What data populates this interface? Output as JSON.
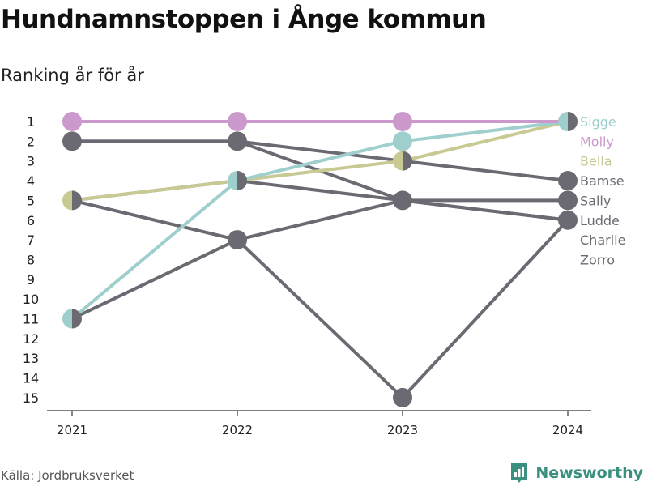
{
  "title": "Hundnamnstoppen i Ånge kommun",
  "subtitle": "Ranking år för år",
  "source": "Källa: Jordbruksverket",
  "brand": "Newsworthy",
  "colors": {
    "Sigge": "#9ecfcc",
    "Molly": "#cc99cc",
    "Bella": "#c9c994",
    "gray": "#6b6a72",
    "axis": "#333333",
    "brand": "#3a8f7f"
  },
  "chart_data": {
    "type": "line",
    "x": [
      "2021",
      "2022",
      "2023",
      "2024"
    ],
    "ylim": [
      1,
      15
    ],
    "y_inverted": true,
    "y_ticks": [
      1,
      2,
      3,
      4,
      5,
      6,
      7,
      8,
      9,
      10,
      11,
      12,
      13,
      14,
      15
    ],
    "series": [
      {
        "name": "Sigge",
        "values": [
          11,
          4,
          2,
          1
        ]
      },
      {
        "name": "Molly",
        "values": [
          1,
          1,
          1,
          1
        ]
      },
      {
        "name": "Bella",
        "values": [
          5,
          4,
          3,
          1
        ]
      },
      {
        "name": "Bamse",
        "values": [
          2,
          2,
          3,
          4
        ]
      },
      {
        "name": "Sally",
        "values": [
          5,
          7,
          5,
          5
        ]
      },
      {
        "name": "Ludde",
        "values": [
          2,
          2,
          5,
          6
        ]
      },
      {
        "name": "Charlie",
        "values": [
          5,
          4,
          5,
          6
        ]
      },
      {
        "name": "Zorro",
        "values": [
          11,
          7,
          15,
          6
        ]
      }
    ]
  }
}
